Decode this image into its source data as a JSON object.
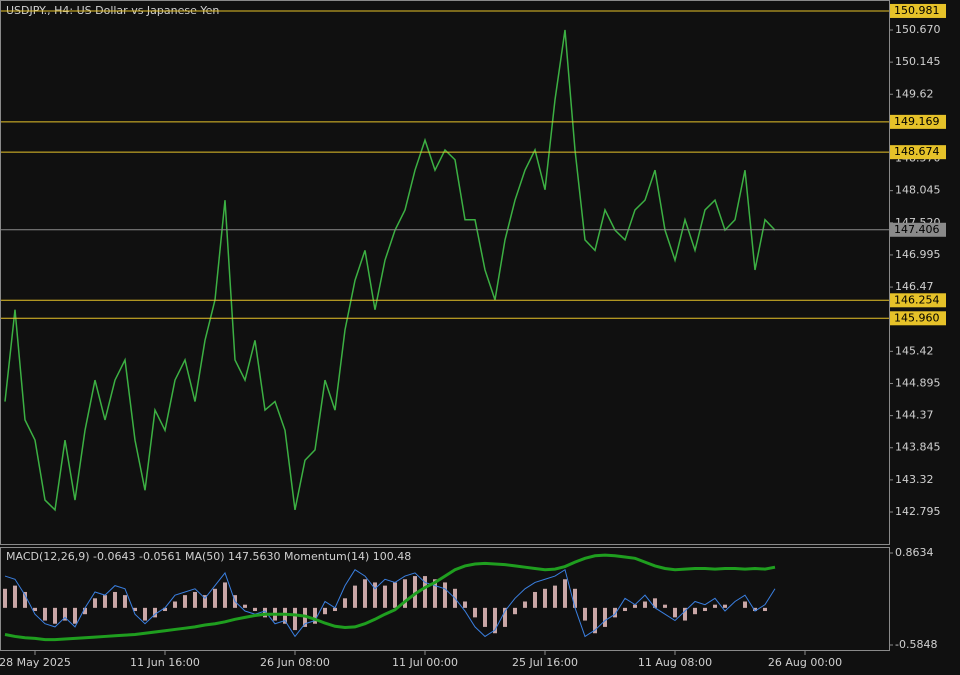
{
  "chart_data": {
    "type": "line",
    "title": "USDJPY., H4:  US Dollar vs Japanese Yen",
    "categories": [
      null,
      null,
      null,
      "28 May 2025",
      null,
      null,
      null,
      null,
      null,
      null,
      null,
      null,
      null,
      null,
      null,
      null,
      "11 Jun 16:00",
      null,
      null,
      null,
      null,
      null,
      null,
      null,
      null,
      null,
      null,
      null,
      null,
      "26 Jun 08:00",
      null,
      null,
      null,
      null,
      null,
      null,
      null,
      null,
      null,
      null,
      null,
      null,
      "11 Jul 00:00",
      null,
      null,
      null,
      null,
      null,
      null,
      null,
      null,
      null,
      null,
      null,
      "25 Jul 16:00",
      null,
      null,
      null,
      null,
      null,
      null,
      null,
      null,
      null,
      null,
      null,
      null,
      "11 Aug 08:00",
      null,
      null,
      null,
      null,
      null,
      null,
      null,
      null,
      null,
      null,
      null,
      null,
      "26 Aug 00:00"
    ],
    "series": [
      {
        "name": "USDJPY.",
        "color": "#3cb043",
        "values": [
          144.6,
          146.1,
          144.3,
          143.97,
          142.99,
          142.83,
          143.97,
          142.99,
          144.13,
          144.95,
          144.3,
          144.95,
          145.28,
          143.97,
          143.15,
          144.46,
          144.13,
          144.95,
          145.28,
          144.6,
          145.6,
          146.26,
          147.89,
          145.28,
          144.95,
          145.6,
          144.46,
          144.6,
          144.13,
          142.83,
          143.64,
          143.81,
          144.95,
          144.46,
          145.77,
          146.58,
          147.07,
          146.1,
          146.91,
          147.4,
          147.73,
          148.38,
          148.87,
          148.38,
          148.71,
          148.55,
          147.57,
          147.57,
          146.75,
          146.26,
          147.24,
          147.89,
          148.38,
          148.71,
          148.06,
          149.53,
          150.67,
          148.71,
          147.24,
          147.07,
          147.73,
          147.4,
          147.24,
          147.73,
          147.89,
          148.38,
          147.4,
          146.91,
          147.57,
          147.07,
          147.73,
          147.89,
          147.4,
          147.57,
          148.38,
          146.75,
          147.57,
          147.4,
          null,
          null,
          null
        ]
      }
    ],
    "ylim": [
      142.256,
      151.16
    ],
    "yticks": [
      142.795,
      143.32,
      143.845,
      144.37,
      144.895,
      145.42,
      146.47,
      146.995,
      {
        "value": 147.52,
        "label": "147.520"
      },
      {
        "value": 148.045,
        "label": "148.045"
      },
      {
        "value": 148.57,
        "label": "148.570"
      },
      149.62,
      150.145,
      {
        "value": 150.67,
        "label": "150.670"
      }
    ],
    "hlines": [
      {
        "value": 150.981,
        "color": "#e6c229"
      },
      {
        "value": 149.169,
        "color": "#e6c229"
      },
      {
        "value": 148.674,
        "color": "#e6c229"
      },
      {
        "value": 146.254,
        "color": "#e6c229"
      },
      {
        "value": 145.96,
        "label": "145.960",
        "color": "#e6c229"
      },
      {
        "value": 147.406,
        "color": "#8a8a8a"
      }
    ],
    "indicator_label": "MACD(12,26,9) -0.0643 -0.0561 MA(50) 147.5630 Momentum(14) 100.48",
    "indicator_ylim": [
      -0.5848,
      0.8634
    ],
    "indicator_yticks": [
      0.8634,
      -0.5848
    ],
    "indicator_series": [
      {
        "name": "MACD",
        "type": "bar",
        "color": "#c9a6a6",
        "values": [
          0.3,
          0.35,
          0.25,
          -0.05,
          -0.2,
          -0.25,
          -0.2,
          -0.25,
          -0.1,
          0.15,
          0.2,
          0.25,
          0.2,
          -0.05,
          -0.2,
          -0.15,
          -0.05,
          0.1,
          0.2,
          0.25,
          0.2,
          0.3,
          0.4,
          0.2,
          0.05,
          -0.05,
          -0.15,
          -0.2,
          -0.25,
          -0.35,
          -0.3,
          -0.25,
          -0.1,
          -0.05,
          0.15,
          0.35,
          0.45,
          0.4,
          0.35,
          0.4,
          0.45,
          0.5,
          0.5,
          0.45,
          0.4,
          0.3,
          0.1,
          -0.15,
          -0.3,
          -0.4,
          -0.3,
          -0.1,
          0.1,
          0.25,
          0.3,
          0.35,
          0.45,
          0.3,
          -0.2,
          -0.4,
          -0.3,
          -0.15,
          -0.05,
          0.05,
          0.1,
          0.15,
          0.05,
          -0.15,
          -0.2,
          -0.1,
          -0.05,
          0.05,
          0.05,
          0,
          0.1,
          -0.05,
          -0.05,
          0,
          null,
          null,
          null
        ]
      },
      {
        "name": "Momentum",
        "type": "line",
        "color": "#3a7fe0",
        "values": [
          0.5,
          0.45,
          0.2,
          -0.1,
          -0.25,
          -0.3,
          -0.15,
          -0.3,
          0,
          0.25,
          0.2,
          0.35,
          0.3,
          -0.1,
          -0.25,
          -0.1,
          0,
          0.2,
          0.25,
          0.3,
          0.15,
          0.35,
          0.55,
          0.1,
          -0.05,
          -0.1,
          -0.05,
          -0.25,
          -0.2,
          -0.45,
          -0.25,
          -0.2,
          0.1,
          0,
          0.35,
          0.6,
          0.5,
          0.3,
          0.45,
          0.4,
          0.5,
          0.55,
          0.4,
          0.35,
          0.3,
          0.15,
          -0.05,
          -0.3,
          -0.45,
          -0.35,
          -0.05,
          0.15,
          0.3,
          0.4,
          0.45,
          0.5,
          0.6,
          0,
          -0.45,
          -0.35,
          -0.2,
          -0.1,
          0.15,
          0.05,
          0.2,
          0,
          -0.1,
          -0.2,
          -0.05,
          0.1,
          0.05,
          0.15,
          -0.05,
          0.1,
          0.2,
          -0.05,
          0.05,
          0.3,
          null,
          null,
          null
        ]
      },
      {
        "name": "MA(50)",
        "type": "line",
        "color": "#1f9e1f",
        "values": [
          -0.42,
          -0.45,
          -0.47,
          -0.48,
          -0.5,
          -0.5,
          -0.49,
          -0.48,
          -0.47,
          -0.46,
          -0.45,
          -0.44,
          -0.43,
          -0.42,
          -0.4,
          -0.38,
          -0.36,
          -0.34,
          -0.32,
          -0.3,
          -0.27,
          -0.25,
          -0.22,
          -0.18,
          -0.15,
          -0.12,
          -0.1,
          -0.1,
          -0.1,
          -0.11,
          -0.13,
          -0.18,
          -0.24,
          -0.29,
          -0.31,
          -0.3,
          -0.25,
          -0.18,
          -0.1,
          -0.03,
          0.1,
          0.22,
          0.32,
          0.4,
          0.5,
          0.6,
          0.66,
          0.69,
          0.7,
          0.69,
          0.68,
          0.66,
          0.64,
          0.62,
          0.6,
          0.61,
          0.65,
          0.72,
          0.78,
          0.82,
          0.83,
          0.82,
          0.8,
          0.78,
          0.72,
          0.66,
          0.62,
          0.6,
          0.61,
          0.62,
          0.62,
          0.61,
          0.62,
          0.62,
          0.61,
          0.62,
          0.61,
          0.64,
          null,
          null,
          null
        ]
      }
    ]
  }
}
